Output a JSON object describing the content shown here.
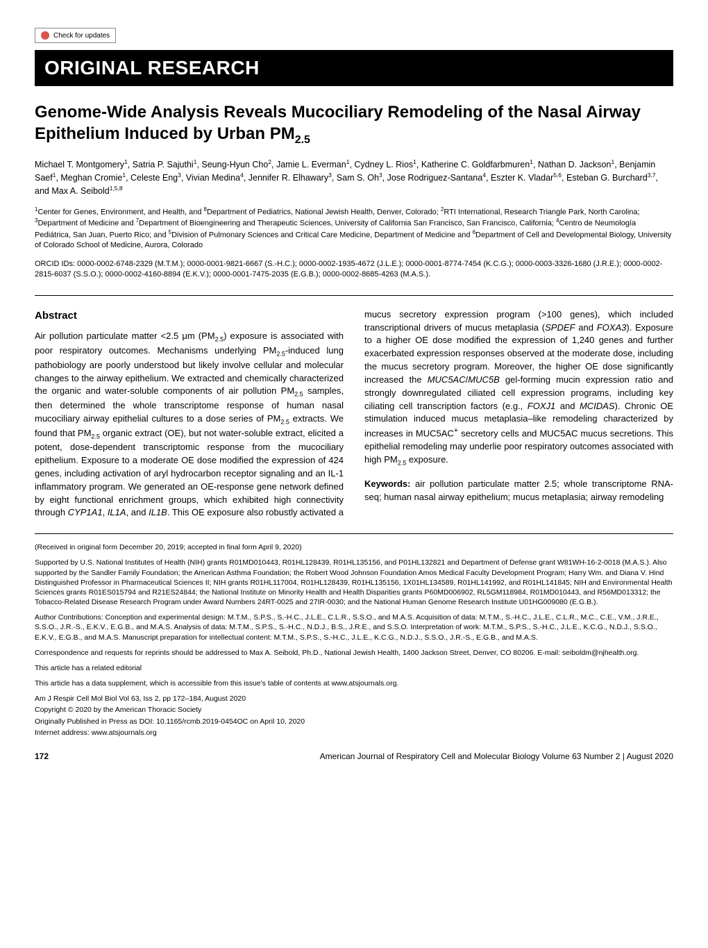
{
  "checkUpdates": "Check for updates",
  "banner": "ORIGINAL RESEARCH",
  "title_pre": "Genome-Wide Analysis Reveals Mucociliary Remodeling of the Nasal Airway Epithelium Induced by Urban PM",
  "title_sub": "2.5",
  "authors_html": "Michael T. Montgomery<sup>1</sup>, Satria P. Sajuthi<sup>1</sup>, Seung-Hyun Cho<sup>2</sup>, Jamie L. Everman<sup>1</sup>, Cydney L. Rios<sup>1</sup>, Katherine C. Goldfarbmuren<sup>1</sup>, Nathan D. Jackson<sup>1</sup>, Benjamin Saef<sup>1</sup>, Meghan Cromie<sup>1</sup>, Celeste Eng<sup>3</sup>, Vivian Medina<sup>4</sup>, Jennifer R. Elhawary<sup>3</sup>, Sam S. Oh<sup>3</sup>, Jose Rodriguez-Santana<sup>4</sup>, Eszter K. Vladar<sup>5,6</sup>, Esteban G. Burchard<sup>3,7</sup>, and Max A. Seibold<sup>1,5,8</sup>",
  "affiliations_html": "<sup>1</sup>Center for Genes, Environment, and Health, and <sup>8</sup>Department of Pediatrics, National Jewish Health, Denver, Colorado; <sup>2</sup>RTI International, Research Triangle Park, North Carolina; <sup>3</sup>Department of Medicine and <sup>7</sup>Department of Bioengineering and Therapeutic Sciences, University of California San Francisco, San Francisco, California; <sup>4</sup>Centro de Neumología Pediátrica, San Juan, Puerto Rico; and <sup>5</sup>Division of Pulmonary Sciences and Critical Care Medicine, Department of Medicine and <sup>6</sup>Department of Cell and Developmental Biology, University of Colorado School of Medicine, Aurora, Colorado",
  "orcid": "ORCID IDs: 0000-0002-6748-2329 (M.T.M.); 0000-0001-9821-6667 (S.-H.C.); 0000-0002-1935-4672 (J.L.E.); 0000-0001-8774-7454 (K.C.G.); 0000-0003-3326-1680 (J.R.E.); 0000-0002-2815-6037 (S.S.O.); 0000-0002-4160-8894 (E.K.V.); 0000-0001-7475-2035 (E.G.B.); 0000-0002-8685-4263 (M.A.S.).",
  "abstract_h": "Abstract",
  "abstract_left_html": "Air pollution particulate matter &lt;2.5 μm (PM<sub>2.5</sub>) exposure is associated with poor respiratory outcomes. Mechanisms underlying PM<sub>2.5</sub>-induced lung pathobiology are poorly understood but likely involve cellular and molecular changes to the airway epithelium. We extracted and chemically characterized the organic and water-soluble components of air pollution PM<sub>2.5</sub> samples, then determined the whole transcriptome response of human nasal mucociliary airway epithelial cultures to a dose series of PM<sub>2.5</sub> extracts. We found that PM<sub>2.5</sub> organic extract (OE), but not water-soluble extract, elicited a potent, dose-dependent transcriptomic response from the mucociliary epithelium. Exposure to a moderate OE dose modified the expression of 424 genes, including activation of aryl hydrocarbon receptor signaling and an IL-1 inflammatory program. We generated an OE-response gene network defined by eight functional enrichment groups, which exhibited high connectivity through <span class=\"ital\">CYP1A1</span>, <span class=\"ital\">IL1A</span>, and <span class=\"ital\">IL1B</span>. This OE exposure also robustly activated a",
  "abstract_right_html": "mucus secretory expression program (&gt;100 genes), which included transcriptional drivers of mucus metaplasia (<span class=\"ital\">SPDEF</span> and <span class=\"ital\">FOXA3</span>). Exposure to a higher OE dose modified the expression of 1,240 genes and further exacerbated expression responses observed at the moderate dose, including the mucus secretory program. Moreover, the higher OE dose significantly increased the <span class=\"ital\">MUC5AC</span>/<span class=\"ital\">MUC5B</span> gel-forming mucin expression ratio and strongly downregulated ciliated cell expression programs, including key ciliating cell transcription factors (e.g., <span class=\"ital\">FOXJ1</span> and <span class=\"ital\">MCIDAS</span>). Chronic OE stimulation induced mucus metaplasia–like remodeling characterized by increases in MUC5AC<sup>+</sup> secretory cells and MUC5AC mucus secretions. This epithelial remodeling may underlie poor respiratory outcomes associated with high PM<sub>2.5</sub> exposure.",
  "keywords_label": "Keywords:",
  "keywords_text": " air pollution particulate matter 2.5; whole transcriptome RNA-seq; human nasal airway epithelium; mucus metaplasia; airway remodeling",
  "received": "(Received in original form December 20, 2019; accepted in final form April 9, 2020)",
  "support": "Supported by U.S. National Institutes of Health (NIH) grants R01MD010443, R01HL128439, R01HL135156, and P01HL132821 and Department of Defense grant W81WH-16-2-0018 (M.A.S.). Also supported by the Sandler Family Foundation; the American Asthma Foundation; the Robert Wood Johnson Foundation Amos Medical Faculty Development Program; Harry Wm. and Diana V. Hind Distinguished Professor in Pharmaceutical Sciences II; NIH grants R01HL117004, R01HL128439, R01HL135156, 1X01HL134589, R01HL141992, and R01HL141845; NIH and Environmental Health Sciences grants R01ES015794 and R21ES24844; the National Institute on Minority Health and Health Disparities grants P60MD006902, RL5GM118984, R01MD010443, and R56MD013312; the Tobacco-Related Disease Research Program under Award Numbers 24RT-0025 and 27IR-0030; and the National Human Genome Research Institute U01HG009080 (E.G.B.).",
  "authorContrib": "Author Contributions: Conception and experimental design: M.T.M., S.P.S., S.-H.C., J.L.E., C.L.R., S.S.O., and M.A.S. Acquisition of data: M.T.M., S.-H.C., J.L.E., C.L.R., M.C., C.E., V.M., J.R.E., S.S.O., J.R.-S., E.K.V., E.G.B., and M.A.S. Analysis of data: M.T.M., S.P.S., S.-H.C., N.D.J., B.S., J.R.E., and S.S.O. Interpretation of work: M.T.M., S.P.S., S.-H.C., J.L.E., K.C.G., N.D.J., S.S.O., E.K.V., E.G.B., and M.A.S. Manuscript preparation for intellectual content: M.T.M., S.P.S., S.-H.C., J.L.E., K.C.G., N.D.J., S.S.O., J.R.-S., E.G.B., and M.A.S.",
  "correspondence": "Correspondence and requests for reprints should be addressed to Max A. Seibold, Ph.D., National Jewish Health, 1400 Jackson Street, Denver, CO 80206. E-mail: seiboldm@njhealth.org.",
  "relatedEditorial": "This article has a related editorial",
  "dataSupplement": "This article has a data supplement, which is accessible from this issue's table of contents at www.atsjournals.org.",
  "citation": "Am J Respir Cell Mol Biol Vol 63, Iss 2, pp 172–184, August 2020",
  "copyright": "Copyright © 2020 by the American Thoracic Society",
  "origPub": "Originally Published in Press as DOI: 10.1165/rcmb.2019-0454OC on April 10, 2020",
  "internet": "Internet address: www.atsjournals.org",
  "pageNum": "172",
  "footerJournal": "American Journal of Respiratory Cell and Molecular Biology Volume 63 Number 2 | August 2020"
}
